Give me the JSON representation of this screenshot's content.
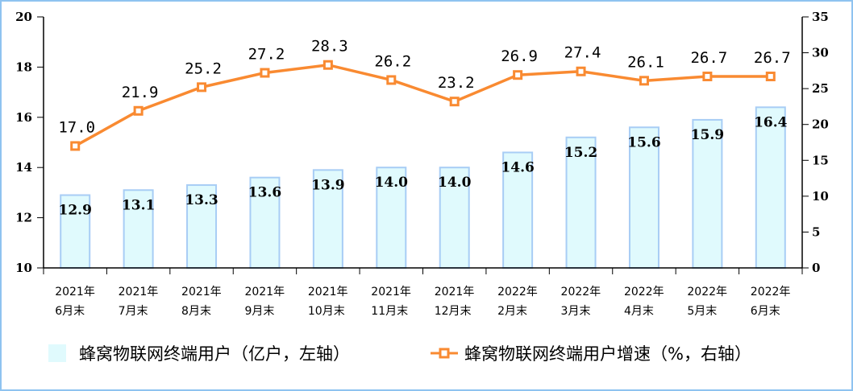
{
  "chart_data": {
    "type": "bar+line",
    "categories": [
      [
        "2021年",
        "6月末"
      ],
      [
        "2021年",
        "7月末"
      ],
      [
        "2021年",
        "8月末"
      ],
      [
        "2021年",
        "9月末"
      ],
      [
        "2021年",
        "10月末"
      ],
      [
        "2021年",
        "11月末"
      ],
      [
        "2021年",
        "12月末"
      ],
      [
        "2022年",
        "2月末"
      ],
      [
        "2022年",
        "3月末"
      ],
      [
        "2022年",
        "4月末"
      ],
      [
        "2022年",
        "5月末"
      ],
      [
        "2022年",
        "6月末"
      ]
    ],
    "series": [
      {
        "name": "蜂窝物联网终端用户（亿户，左轴）",
        "type": "bar",
        "axis": "left",
        "color": "#e0fafd",
        "edge": "#a8cdf5",
        "values": [
          12.9,
          13.1,
          13.3,
          13.6,
          13.9,
          14.0,
          14.0,
          14.6,
          15.2,
          15.6,
          15.9,
          16.4
        ],
        "labels": [
          "12.9",
          "13.1",
          "13.3",
          "13.6",
          "13.9",
          "14.0",
          "14.0",
          "14.6",
          "15.2",
          "15.6",
          "15.9",
          "16.4"
        ]
      },
      {
        "name": "蜂窝物联网终端用户增速（%，右轴）",
        "type": "line",
        "axis": "right",
        "color": "#f98a31",
        "values": [
          17.0,
          21.9,
          25.2,
          27.2,
          28.3,
          26.2,
          23.2,
          26.9,
          27.4,
          26.1,
          26.7,
          26.7
        ],
        "labels": [
          "17.0",
          "21.9",
          "25.2",
          "27.2",
          "28.3",
          "26.2",
          "23.2",
          "26.9",
          "27.4",
          "26.1",
          "26.7",
          "26.7"
        ]
      }
    ],
    "left_axis": {
      "ylim": [
        10,
        20
      ],
      "ticks": [
        "10",
        "12",
        "14",
        "16",
        "18",
        "20"
      ]
    },
    "right_axis": {
      "ylim": [
        0,
        35
      ],
      "ticks": [
        "0",
        "5",
        "10",
        "15",
        "20",
        "25",
        "30",
        "35"
      ]
    },
    "grid": false,
    "legend_position": "bottom"
  }
}
